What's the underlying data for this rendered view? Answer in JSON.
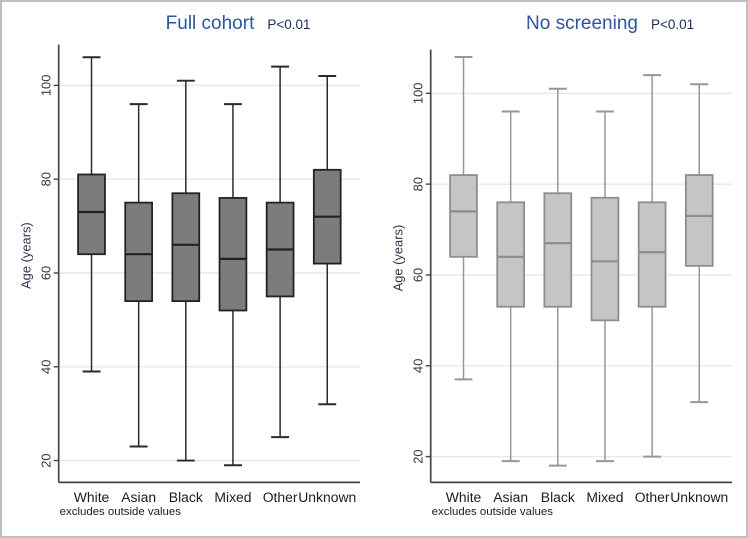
{
  "colors": {
    "title_blue": "#2e55a0",
    "pvalue_navy": "#1c2d55",
    "grid_blue": "#dcebf4",
    "axis_gray": "#454545",
    "tick_text": "#30364a",
    "label_text": "#1d1d1d",
    "frame_border": "#bfbfbf",
    "background": "#ffffff"
  },
  "chart_data": [
    {
      "type": "box",
      "title": "Full cohort",
      "p_value": "P<0.01",
      "ylabel": "Age (years)",
      "xlabel": "",
      "note": "excludes outside values",
      "legend": "none",
      "grid": true,
      "categories": [
        "White",
        "Asian",
        "Black",
        "Mixed",
        "Other",
        "Unknown"
      ],
      "yticks": [
        20,
        40,
        60,
        80,
        100
      ],
      "ylim": [
        15,
        108
      ],
      "series": [
        {
          "name": "White",
          "low": 39,
          "q1": 64,
          "median": 73,
          "q3": 81,
          "high": 106
        },
        {
          "name": "Asian",
          "low": 23,
          "q1": 54,
          "median": 64,
          "q3": 75,
          "high": 96
        },
        {
          "name": "Black",
          "low": 20,
          "q1": 54,
          "median": 66,
          "q3": 77,
          "high": 101
        },
        {
          "name": "Mixed",
          "low": 19,
          "q1": 52,
          "median": 63,
          "q3": 76,
          "high": 96
        },
        {
          "name": "Other",
          "low": 25,
          "q1": 55,
          "median": 65,
          "q3": 75,
          "high": 104
        },
        {
          "name": "Unknown",
          "low": 32,
          "q1": 62,
          "median": 72,
          "q3": 82,
          "high": 102
        }
      ],
      "box_fill": "#7c7c7c",
      "box_stroke": "#222222",
      "whisker_color": "#2a2a2a"
    },
    {
      "type": "box",
      "title": "No screening",
      "p_value": "P<0.01",
      "ylabel": "Age (years)",
      "xlabel": "",
      "note": "excludes outside values",
      "legend": "none",
      "grid": true,
      "categories": [
        "White",
        "Asian",
        "Black",
        "Mixed",
        "Other",
        "Unknown"
      ],
      "yticks": [
        20,
        40,
        60,
        80,
        100
      ],
      "ylim": [
        14,
        109
      ],
      "series": [
        {
          "name": "White",
          "low": 37,
          "q1": 64,
          "median": 74,
          "q3": 82,
          "high": 108
        },
        {
          "name": "Asian",
          "low": 19,
          "q1": 53,
          "median": 64,
          "q3": 76,
          "high": 96
        },
        {
          "name": "Black",
          "low": 18,
          "q1": 53,
          "median": 67,
          "q3": 78,
          "high": 101
        },
        {
          "name": "Mixed",
          "low": 19,
          "q1": 50,
          "median": 63,
          "q3": 77,
          "high": 96
        },
        {
          "name": "Other",
          "low": 20,
          "q1": 53,
          "median": 65,
          "q3": 76,
          "high": 104
        },
        {
          "name": "Unknown",
          "low": 32,
          "q1": 62,
          "median": 73,
          "q3": 82,
          "high": 102
        }
      ],
      "box_fill": "#c5c5c5",
      "box_stroke": "#8d8d8d",
      "whisker_color": "#979797"
    }
  ]
}
